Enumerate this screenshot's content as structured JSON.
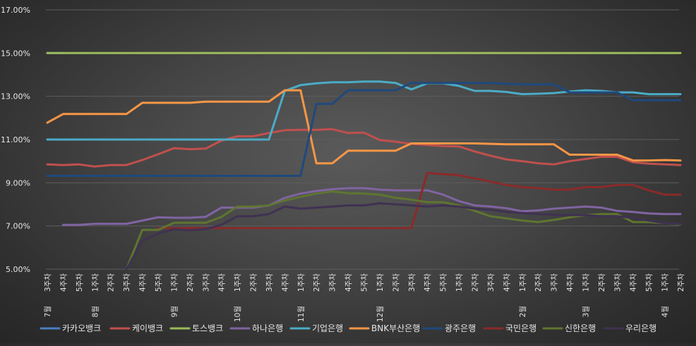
{
  "chart_data": {
    "type": "line",
    "title": "",
    "xlabel": "",
    "ylabel": "",
    "ylim": [
      0.05,
      0.17
    ],
    "yticks": [
      "17.00%",
      "15.00%",
      "13.00%",
      "11.00%",
      "9.00%",
      "7.00%",
      "5.00%"
    ],
    "grid": true,
    "legend": "bottom",
    "x_month_labels": [
      {
        "index": 0,
        "text": "7월"
      },
      {
        "index": 3,
        "text": "8월"
      },
      {
        "index": 8,
        "text": "9월"
      },
      {
        "index": 12,
        "text": "10월"
      },
      {
        "index": 16,
        "text": "11월"
      },
      {
        "index": 21,
        "text": "12월"
      },
      {
        "index": 30,
        "text": "2월"
      },
      {
        "index": 34,
        "text": "3월"
      },
      {
        "index": 39,
        "text": "4월"
      }
    ],
    "x": [
      "3주차",
      "4주차",
      "5주차",
      "1주차",
      "2주차",
      "3주차",
      "4주차",
      "5주차",
      "1주차",
      "2주차",
      "3주차",
      "4주차",
      "1주차",
      "2주차",
      "3주차",
      "4주차",
      "1주차",
      "2주차",
      "3주차",
      "4주차",
      "5주차",
      "1주차",
      "2주차",
      "3주차",
      "4주차",
      "5주차",
      "1주차",
      "2주차",
      "3주차",
      "4주차",
      "1주차",
      "2주차",
      "3주차",
      "4주차",
      "1주차",
      "2주차",
      "3주차",
      "4주차",
      "5주차",
      "1주차",
      "2주차"
    ],
    "series": [
      {
        "name": "카카오뱅크",
        "color": "#4a7fc1",
        "values": [
          0.15,
          0.15,
          null,
          null,
          null,
          null,
          null,
          null,
          null,
          null,
          null,
          null,
          null,
          null,
          null,
          null,
          null,
          null,
          null,
          null,
          null,
          null,
          null,
          null,
          null,
          null,
          null,
          null,
          null,
          null,
          null,
          null,
          null,
          null,
          null,
          null,
          null,
          null,
          null,
          null,
          null
        ]
      },
      {
        "name": "케이뱅크",
        "color": "#c0504d",
        "values": [
          0.0985,
          0.0982,
          0.0985,
          0.0975,
          0.0982,
          0.0982,
          0.1005,
          0.1032,
          0.106,
          0.1055,
          0.1058,
          0.1095,
          0.1115,
          0.1115,
          0.113,
          0.1143,
          0.1145,
          0.1145,
          0.1148,
          0.113,
          0.1132,
          0.1098,
          0.109,
          0.108,
          0.1075,
          0.107,
          0.1068,
          0.1045,
          0.1025,
          0.1008,
          0.1,
          0.099,
          0.0985,
          0.1,
          0.101,
          0.102,
          0.102,
          0.0995,
          0.0988,
          0.0985,
          0.0982
        ]
      },
      {
        "name": "토스뱅크",
        "color": "#9bbb59",
        "values": [
          0.15,
          0.15,
          0.15,
          0.15,
          0.15,
          0.15,
          0.15,
          0.15,
          0.15,
          0.15,
          0.15,
          0.15,
          0.15,
          0.15,
          0.15,
          0.15,
          0.15,
          0.15,
          0.15,
          0.15,
          0.15,
          0.15,
          0.15,
          0.15,
          0.15,
          0.15,
          0.15,
          0.15,
          0.15,
          0.15,
          0.15,
          0.15,
          0.15,
          0.15,
          0.15,
          0.15,
          0.15,
          0.15,
          0.15,
          0.15,
          0.15
        ]
      },
      {
        "name": "하나은행",
        "color": "#8064a2",
        "values": [
          null,
          0.0705,
          0.0705,
          0.071,
          0.071,
          0.071,
          0.0725,
          0.074,
          0.0738,
          0.0738,
          0.0742,
          0.0785,
          0.0785,
          0.0785,
          0.0795,
          0.083,
          0.085,
          0.0862,
          0.087,
          0.0875,
          0.0875,
          0.0868,
          0.0865,
          0.0865,
          0.0865,
          0.0845,
          0.0815,
          0.0795,
          0.079,
          0.0782,
          0.0768,
          0.0772,
          0.078,
          0.0785,
          0.079,
          0.0785,
          0.077,
          0.0765,
          0.0758,
          0.0755,
          0.0755
        ]
      },
      {
        "name": "기업은행",
        "color": "#4bacc6",
        "values": [
          0.11,
          0.11,
          0.11,
          0.11,
          0.11,
          0.11,
          0.11,
          0.11,
          0.11,
          0.11,
          0.11,
          0.11,
          0.11,
          0.11,
          0.11,
          0.1325,
          0.1352,
          0.136,
          0.1365,
          0.1365,
          0.1368,
          0.1368,
          0.1362,
          0.1332,
          0.136,
          0.136,
          0.1348,
          0.1325,
          0.1325,
          0.132,
          0.131,
          0.1312,
          0.1315,
          0.1322,
          0.1328,
          0.1325,
          0.1318,
          0.1318,
          0.131,
          0.131,
          0.131
        ]
      },
      {
        "name": "BNK부산은행",
        "color": "#f79646",
        "values": [
          0.1178,
          0.1218,
          0.1218,
          0.1218,
          0.1218,
          0.1218,
          0.127,
          0.127,
          0.127,
          0.127,
          0.1275,
          0.1275,
          0.1275,
          0.1275,
          0.1275,
          0.1328,
          0.1328,
          0.099,
          0.099,
          0.1048,
          0.1048,
          0.1048,
          0.1048,
          0.1082,
          0.1082,
          0.1082,
          0.1082,
          0.1082,
          0.108,
          0.1078,
          0.1078,
          0.1078,
          0.1078,
          0.103,
          0.103,
          0.103,
          0.103,
          0.1003,
          0.1003,
          0.1005,
          0.1003
        ]
      },
      {
        "name": "광주은행",
        "color": "#1f497d",
        "values": [
          0.0932,
          0.0932,
          0.0932,
          0.0932,
          0.0932,
          0.0932,
          0.0932,
          0.0932,
          0.0932,
          0.0932,
          0.0932,
          0.0932,
          0.0932,
          0.0932,
          0.0932,
          0.0932,
          0.0932,
          0.1265,
          0.1265,
          0.1328,
          0.1328,
          0.1328,
          0.1328,
          0.1362,
          0.1362,
          0.1362,
          0.1362,
          0.1362,
          0.1362,
          0.1358,
          0.1355,
          0.1355,
          0.1355,
          0.1318,
          0.1318,
          0.1318,
          0.1318,
          0.1282,
          0.1282,
          0.1282,
          0.1282
        ]
      },
      {
        "name": "국민은행",
        "color": "#8b2a2a",
        "values": [
          null,
          null,
          null,
          null,
          null,
          null,
          null,
          0.069,
          0.069,
          0.069,
          0.069,
          0.069,
          0.069,
          0.069,
          0.069,
          0.069,
          0.069,
          0.069,
          0.069,
          0.069,
          0.069,
          0.069,
          0.069,
          0.069,
          0.0945,
          0.094,
          0.0935,
          0.092,
          0.0905,
          0.089,
          0.088,
          0.0875,
          0.0868,
          0.0868,
          0.088,
          0.088,
          0.089,
          0.089,
          0.0865,
          0.0845,
          0.0845
        ]
      },
      {
        "name": "신한은행",
        "color": "#5f7530",
        "values": [
          null,
          null,
          null,
          null,
          null,
          0.0495,
          0.0682,
          0.0682,
          0.0715,
          0.0715,
          0.0715,
          0.0742,
          0.079,
          0.079,
          0.0795,
          0.0818,
          0.0835,
          0.085,
          0.086,
          0.0852,
          0.085,
          0.0845,
          0.083,
          0.0822,
          0.081,
          0.081,
          0.0795,
          0.077,
          0.0745,
          0.0735,
          0.0725,
          0.0718,
          0.0728,
          0.074,
          0.075,
          0.0755,
          0.0755,
          0.0718,
          0.0718,
          0.0712,
          0.0708
        ]
      },
      {
        "name": "우리은행",
        "color": "#403152",
        "values": [
          null,
          null,
          null,
          null,
          null,
          0.0495,
          0.063,
          0.0665,
          0.0685,
          0.068,
          0.0685,
          0.0705,
          0.0745,
          0.0745,
          0.0755,
          0.079,
          0.078,
          0.0785,
          0.079,
          0.0795,
          0.0795,
          0.0805,
          0.08,
          0.0795,
          0.079,
          0.0795,
          0.079,
          0.078,
          0.0775,
          0.0765,
          0.076,
          0.0755,
          0.0752,
          0.075,
          0.075,
          0.0745,
          0.0745,
          0.0738,
          0.0725,
          0.0712,
          0.071
        ]
      }
    ]
  }
}
